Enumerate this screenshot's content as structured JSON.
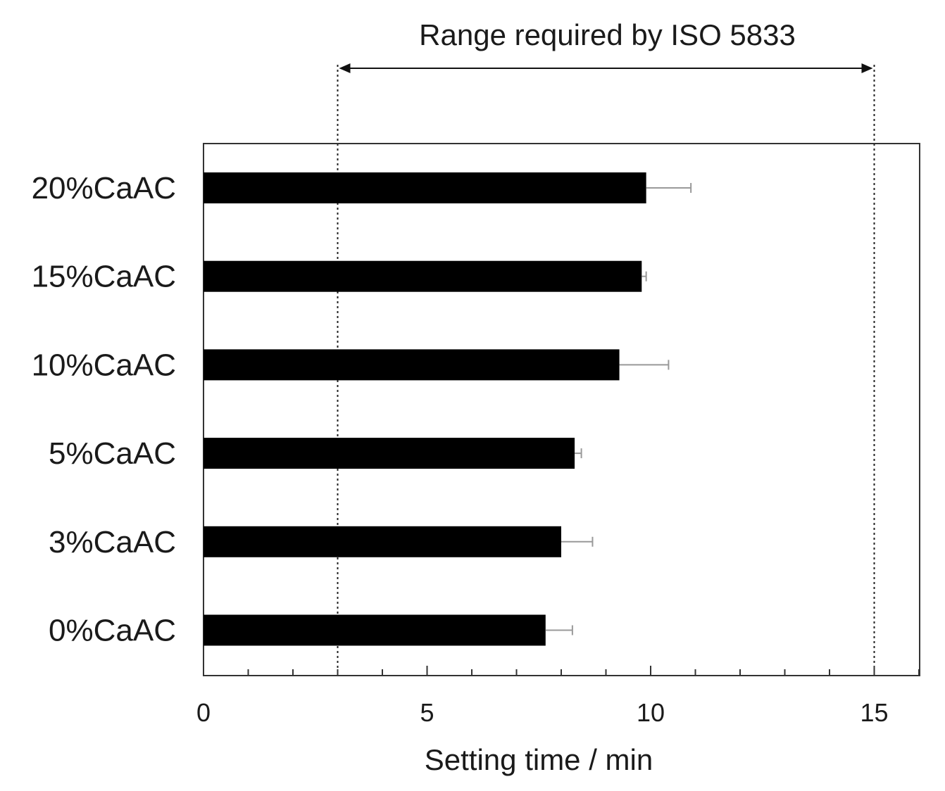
{
  "chart_data": {
    "type": "bar",
    "orientation": "horizontal",
    "title": "",
    "xlabel": "Setting time / min",
    "ylabel": "",
    "xlim": [
      0,
      16
    ],
    "xticks": [
      0,
      5,
      10,
      15
    ],
    "minor_tick_step": 1,
    "grid": false,
    "categories": [
      "20%CaAC",
      "15%CaAC",
      "10%CaAC",
      "5%CaAC",
      "3%CaAC",
      "0%CaAC"
    ],
    "values": [
      9.9,
      9.8,
      9.3,
      8.3,
      8.0,
      7.65
    ],
    "errors": [
      1.0,
      0.1,
      1.1,
      0.15,
      0.7,
      0.6
    ],
    "bar_color": "#000000",
    "error_color": "#999999",
    "annotation": {
      "text": "Range required by ISO 5833",
      "from": 3,
      "to": 15
    }
  }
}
